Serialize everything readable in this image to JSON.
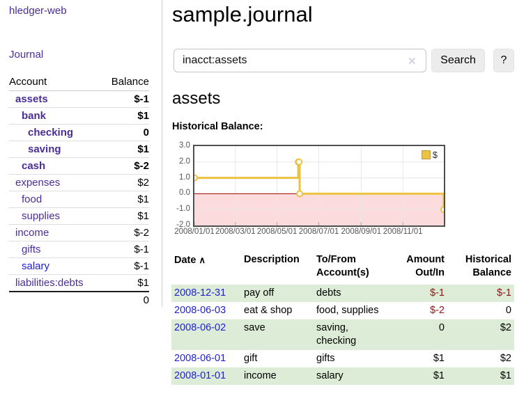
{
  "brand": "hledger-web",
  "sidebar": {
    "journal_link": "Journal",
    "account_header": "Account",
    "balance_header": "Balance",
    "rows": [
      {
        "name": "assets",
        "indent": 1,
        "bold": true,
        "link": "purple",
        "balance": "$-1",
        "bclass": "neg"
      },
      {
        "name": "bank",
        "indent": 2,
        "bold": true,
        "link": "purple",
        "balance": "$1",
        "bclass": ""
      },
      {
        "name": "checking",
        "indent": 3,
        "bold": true,
        "link": "purple",
        "balance": "0",
        "bclass": ""
      },
      {
        "name": "saving",
        "indent": 3,
        "bold": true,
        "link": "purple",
        "balance": "$1",
        "bclass": ""
      },
      {
        "name": "cash",
        "indent": 2,
        "bold": true,
        "link": "purple",
        "balance": "$-2",
        "bclass": "neg"
      },
      {
        "name": "expenses",
        "indent": 1,
        "bold": false,
        "link": "purple",
        "balance": "$2",
        "bclass": ""
      },
      {
        "name": "food",
        "indent": 2,
        "bold": false,
        "link": "purple",
        "balance": "$1",
        "bclass": ""
      },
      {
        "name": "supplies",
        "indent": 2,
        "bold": false,
        "link": "purple",
        "balance": "$1",
        "bclass": ""
      },
      {
        "name": "income",
        "indent": 1,
        "bold": false,
        "link": "purple",
        "balance": "$-2",
        "bclass": "negfade"
      },
      {
        "name": "gifts",
        "indent": 2,
        "bold": false,
        "link": "purple",
        "balance": "$-1",
        "bclass": "negfade"
      },
      {
        "name": "salary",
        "indent": 2,
        "bold": false,
        "link": "blue",
        "balance": "$-1",
        "bclass": "negfade"
      },
      {
        "name": "liabilities:debts",
        "indent": 1,
        "bold": false,
        "link": "purple",
        "balance": "$1",
        "bclass": ""
      }
    ],
    "total": "0"
  },
  "page": {
    "title": "sample.journal"
  },
  "search": {
    "value": "inacct:assets",
    "clear_icon": "✕",
    "button_label": "Search",
    "help_label": "?"
  },
  "account": {
    "heading": "assets",
    "section_label": "Historical Balance:"
  },
  "chart_data": {
    "type": "line",
    "step": true,
    "title": "Historical Balance:",
    "series": [
      {
        "name": "$",
        "color": "#edc240",
        "points": [
          [
            "2008-01-01",
            1
          ],
          [
            "2008-06-01",
            2
          ],
          [
            "2008-06-02",
            2
          ],
          [
            "2008-06-03",
            0
          ],
          [
            "2008-12-31",
            -1
          ]
        ]
      }
    ],
    "x_ticks": [
      "2008/01/01",
      "2008/03/01",
      "2008/05/01",
      "2008/07/01",
      "2008/09/01",
      "2008/11/01"
    ],
    "y_ticks": [
      "3.0",
      "2.0",
      "1.0",
      "0.0",
      "-1.0",
      "-2.0"
    ],
    "ylim": [
      -2,
      3
    ],
    "x_range": [
      "2008-01-01",
      "2008-12-31"
    ],
    "legend": {
      "label": "$",
      "position": "top-right"
    },
    "grid": true,
    "grid_color": "#e7e7e7",
    "negative_region_color": "#fbdbdb",
    "zero_line_color": "#990000"
  },
  "register": {
    "headers": [
      {
        "line1": "Date",
        "line2": "",
        "align": "left",
        "sort_icon": "∧"
      },
      {
        "line1": "Description",
        "line2": "",
        "align": "left",
        "sort_icon": ""
      },
      {
        "line1": "To/From",
        "line2": "Account(s)",
        "align": "left",
        "sort_icon": ""
      },
      {
        "line1": "Amount",
        "line2": "Out/In",
        "align": "right",
        "sort_icon": ""
      },
      {
        "line1": "Historical",
        "line2": "Balance",
        "align": "right",
        "sort_icon": ""
      }
    ],
    "rows": [
      {
        "date": "2008-12-31",
        "description": "pay off",
        "accounts": "debts",
        "wrap": false,
        "amount": "$-1",
        "amount_neg": true,
        "balance": "$-1",
        "balance_neg": true,
        "green": true
      },
      {
        "date": "2008-06-03",
        "description": "eat & shop",
        "accounts": "food, supplies",
        "wrap": false,
        "amount": "$-2",
        "amount_neg": true,
        "balance": "0",
        "balance_neg": false,
        "green": false
      },
      {
        "date": "2008-06-02",
        "description": "save",
        "accounts": "saving, checking",
        "wrap": true,
        "amount": "0",
        "amount_neg": false,
        "balance": "$2",
        "balance_neg": false,
        "green": true
      },
      {
        "date": "2008-06-01",
        "description": "gift",
        "accounts": "gifts",
        "wrap": false,
        "amount": "$1",
        "amount_neg": false,
        "balance": "$2",
        "balance_neg": false,
        "green": false
      },
      {
        "date": "2008-01-01",
        "description": "income",
        "accounts": "salary",
        "wrap": false,
        "amount": "$1",
        "amount_neg": false,
        "balance": "$1",
        "balance_neg": false,
        "green": true
      }
    ]
  }
}
